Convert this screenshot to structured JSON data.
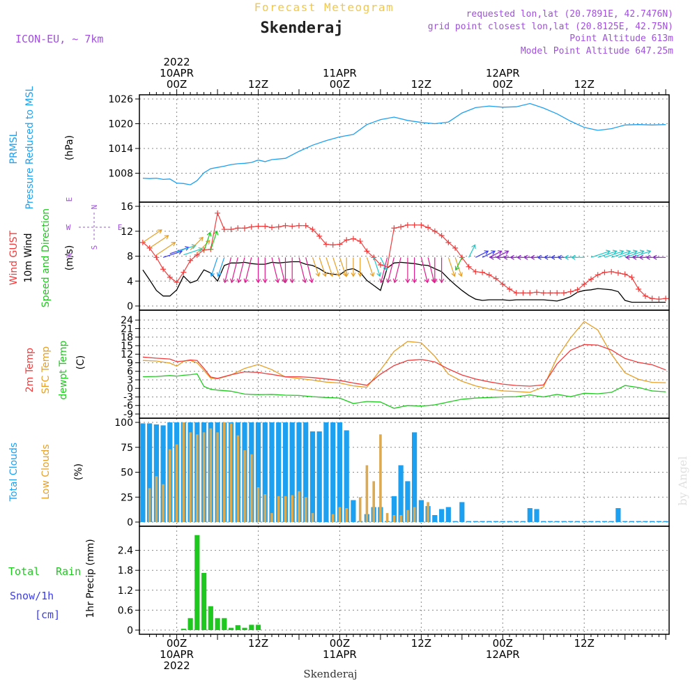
{
  "header": {
    "product": "Forecast Meteogram",
    "location": "Skenderaj",
    "model": "ICON-EU, ~ 7km",
    "requested": "requested lon,lat (20.7891E, 42.7476N)",
    "grid_point": "grid point closest lon,lat (20.8125E, 42.75N)",
    "point_altitude": "Point Altitude 613m",
    "model_altitude": "Model Point Altitude 647.25m",
    "watermark": "by Angel",
    "footer_location": "Skenderaj"
  },
  "time_axis": {
    "top_labels": [
      {
        "hour": 0,
        "lines": [
          "2022",
          "10APR",
          "00Z"
        ]
      },
      {
        "hour": 12,
        "lines": [
          "12Z"
        ]
      },
      {
        "hour": 24,
        "lines": [
          "11APR",
          "00Z"
        ]
      },
      {
        "hour": 36,
        "lines": [
          "12Z"
        ]
      },
      {
        "hour": 48,
        "lines": [
          "12APR",
          "00Z"
        ]
      },
      {
        "hour": 60,
        "lines": [
          "12Z"
        ]
      }
    ],
    "bottom_labels": [
      {
        "hour": 0,
        "lines": [
          "00Z",
          "10APR",
          "2022"
        ]
      },
      {
        "hour": 12,
        "lines": [
          "12Z"
        ]
      },
      {
        "hour": 24,
        "lines": [
          "00Z",
          "11APR"
        ]
      },
      {
        "hour": 36,
        "lines": [
          "12Z"
        ]
      },
      {
        "hour": 48,
        "lines": [
          "00Z",
          "12APR"
        ]
      },
      {
        "hour": 60,
        "lines": [
          "12Z"
        ]
      }
    ],
    "hour_min": -5.5,
    "hour_max": 72.5
  },
  "panel_labels": {
    "pressure": [
      "PRMSL",
      "Pressure Reduced to MSL",
      "(hPa)"
    ],
    "wind": [
      "Wind GUST",
      "10m Wind",
      "Speed and Direction",
      "(m/s)"
    ],
    "wind_compass": {
      "n": "N",
      "s": "S",
      "w": "W",
      "e": "E"
    },
    "temp": [
      "2m Temp",
      "SFC Temp",
      "dewpt Temp",
      "(C)"
    ],
    "clouds": [
      "Total Clouds",
      "Low Clouds",
      "(%)"
    ],
    "precip": [
      "Total",
      "Rain",
      "Snow/1h",
      "[cm]",
      "1hr Precip (mm)"
    ]
  },
  "colors": {
    "pressure": "#1ea0f0",
    "gust": "#f03c3c",
    "wind": "#000000",
    "temp2m": "#f03c3c",
    "sfc": "#e6a028",
    "dewpt": "#1ec81e",
    "total_cloud": "#1ea0f0",
    "low_cloud": "#dcaa50",
    "rain": "#1ec81e",
    "snow": "#3c3cf0",
    "title": "#f0c850",
    "info": "#a050dc"
  },
  "chart_data": [
    {
      "type": "line",
      "name": "pressure",
      "ylabel": "(hPa)",
      "ylim": [
        1002,
        1026
      ],
      "yticks": [
        1008,
        1014,
        1020,
        1026
      ],
      "x": [
        -5,
        -4,
        -3,
        -2,
        -1,
        0,
        1,
        2,
        3,
        4,
        5,
        6,
        7,
        8,
        9,
        10,
        11,
        12,
        13,
        14,
        16,
        18,
        20,
        22,
        24,
        26,
        28,
        30,
        32,
        34,
        36,
        38,
        40,
        42,
        44,
        46,
        48,
        50,
        52,
        54,
        56,
        58,
        60,
        62,
        64,
        66,
        68,
        70,
        72
      ],
      "y": [
        1006.8,
        1006.7,
        1006.8,
        1006.5,
        1006.6,
        1005.6,
        1005.5,
        1005.2,
        1006.2,
        1008.1,
        1009.1,
        1009.4,
        1009.7,
        1010.1,
        1010.3,
        1010.4,
        1010.6,
        1011.2,
        1010.8,
        1011.3,
        1011.6,
        1013.3,
        1014.8,
        1015.9,
        1016.8,
        1017.4,
        1019.8,
        1021.0,
        1021.6,
        1020.8,
        1020.3,
        1020.0,
        1020.4,
        1022.6,
        1023.9,
        1024.3,
        1024.0,
        1024.1,
        1024.9,
        1023.8,
        1022.4,
        1020.6,
        1019.1,
        1018.4,
        1018.8,
        1019.7,
        1019.8,
        1019.7,
        1019.8
      ]
    },
    {
      "type": "line",
      "name": "wind",
      "ylabel": "(m/s)",
      "ylim": [
        0,
        16
      ],
      "yticks": [
        0,
        4,
        8,
        12,
        16
      ],
      "x": [
        -5,
        -4,
        -3,
        -2,
        -1,
        0,
        1,
        2,
        3,
        4,
        5,
        6,
        7,
        8,
        9,
        10,
        11,
        12,
        13,
        14,
        15,
        16,
        17,
        18,
        19,
        20,
        21,
        22,
        23,
        24,
        25,
        26,
        27,
        28,
        29,
        30,
        31,
        32,
        33,
        34,
        35,
        36,
        37,
        38,
        39,
        40,
        41,
        42,
        43,
        44,
        45,
        46,
        47,
        48,
        49,
        50,
        51,
        52,
        53,
        54,
        55,
        56,
        57,
        58,
        59,
        60,
        61,
        62,
        63,
        64,
        65,
        66,
        67,
        68,
        69,
        70,
        71,
        72
      ],
      "gust": [
        10.2,
        9.3,
        7.8,
        5.9,
        4.6,
        3.8,
        5.4,
        7.3,
        8.2,
        9.0,
        9.1,
        14.9,
        12.3,
        12.3,
        12.5,
        12.5,
        12.7,
        12.8,
        12.8,
        12.6,
        12.7,
        12.9,
        12.8,
        12.9,
        12.9,
        12.3,
        11.2,
        9.9,
        9.8,
        9.9,
        10.6,
        10.8,
        10.4,
        8.8,
        7.8,
        6.6,
        6.3,
        12.5,
        12.7,
        13.0,
        13.0,
        13.0,
        12.6,
        12.0,
        11.3,
        10.2,
        9.3,
        7.8,
        6.3,
        5.5,
        5.4,
        5.0,
        4.4,
        3.5,
        2.7,
        2.1,
        2.1,
        2.1,
        2.2,
        2.1,
        2.1,
        2.1,
        2.1,
        2.3,
        2.6,
        3.5,
        4.3,
        5.0,
        5.4,
        5.5,
        5.3,
        5.1,
        4.6,
        2.7,
        1.6,
        1.2,
        1.1,
        1.2
      ],
      "speed": [
        5.8,
        4.2,
        2.5,
        1.6,
        1.6,
        2.6,
        4.8,
        3.7,
        4.1,
        5.8,
        5.3,
        4.0,
        6.5,
        6.9,
        6.9,
        7.0,
        6.8,
        6.7,
        6.7,
        7.0,
        6.9,
        7.0,
        7.1,
        7.1,
        6.7,
        6.5,
        6.0,
        5.3,
        5.1,
        5.0,
        5.8,
        6.0,
        5.4,
        4.1,
        3.3,
        2.5,
        6.1,
        6.9,
        7.0,
        6.9,
        6.8,
        6.6,
        6.5,
        6.0,
        5.5,
        4.4,
        3.4,
        2.5,
        1.7,
        1.1,
        0.9,
        1.0,
        1.0,
        1.0,
        0.9,
        1.0,
        1.0,
        1.0,
        1.0,
        1.0,
        0.9,
        0.8,
        1.1,
        1.5,
        2.2,
        2.5,
        2.6,
        2.8,
        2.7,
        2.6,
        2.3,
        0.9,
        0.6,
        0.6,
        0.6,
        0.6,
        0.6,
        0.6
      ],
      "arrows": {
        "level": [
          10.2,
          9.3,
          8.2,
          7.8,
          8.4,
          8.7,
          8.2,
          9.0,
          8.5,
          8.8,
          9.0,
          7.8,
          7.8,
          7.8,
          7.8,
          7.8,
          7.8,
          7.8,
          7.8,
          7.8,
          7.8,
          7.8,
          7.8,
          7.8,
          7.8,
          7.8,
          7.8,
          7.8,
          7.8,
          7.8,
          7.8,
          7.8,
          7.8,
          7.8,
          7.8,
          7.8,
          7.8,
          7.8,
          7.8,
          7.8,
          7.8,
          7.8,
          7.8,
          7.8,
          7.8,
          7.8,
          7.8,
          7.8,
          7.8,
          7.8,
          7.8,
          7.8,
          7.8,
          7.8,
          7.8,
          7.8,
          7.8,
          7.8,
          7.8,
          7.8,
          7.8,
          7.8,
          7.8,
          7.8,
          7.8,
          7.8,
          7.8,
          7.8,
          7.8,
          7.8,
          7.8,
          7.8,
          7.8,
          7.8,
          7.8,
          7.8,
          7.8,
          7.8
        ],
        "dx": [
          3,
          3,
          3,
          3,
          3,
          3,
          3,
          2,
          2,
          1,
          1,
          -1,
          -1,
          -1,
          -1,
          -1,
          -1,
          0,
          0,
          1,
          1,
          0,
          0,
          1,
          1,
          1,
          1,
          1,
          1,
          1,
          0,
          0,
          0,
          1,
          1,
          1,
          -1,
          -1,
          -1,
          0,
          0,
          1,
          1,
          0,
          0,
          1,
          1,
          -1,
          1,
          2,
          2,
          2,
          2,
          -2,
          -2,
          -2,
          -2,
          -2,
          -2,
          -2,
          -2,
          -2,
          -2,
          -2,
          -2,
          -2,
          3,
          3,
          3,
          3,
          3,
          3,
          3,
          -2,
          -2,
          -2,
          -2,
          -2
        ],
        "dy": [
          -2,
          -2,
          -2,
          -1,
          -1,
          -1,
          -1,
          -2,
          -2,
          -3,
          -3,
          3,
          3,
          4,
          4,
          4,
          4,
          4,
          4,
          4,
          4,
          4,
          4,
          4,
          4,
          3,
          3,
          3,
          3,
          3,
          3,
          3,
          3,
          3,
          3,
          2,
          4,
          4,
          4,
          4,
          4,
          4,
          4,
          4,
          4,
          3,
          3,
          2,
          -2,
          -1,
          -1,
          -1,
          -1,
          0,
          0,
          0,
          0,
          0,
          0,
          0,
          0,
          0,
          0,
          0,
          0,
          0,
          -1,
          -1,
          -1,
          -1,
          -1,
          -1,
          -1,
          0,
          0,
          0,
          0,
          0
        ],
        "colors": [
          "#e6a028",
          "#e6a028",
          "#e6a028",
          "#3c3cf0",
          "#3c3cf0",
          "#1ec8c8",
          "#1ec8c8",
          "#e6a028",
          "#e6a028",
          "#1ec81e",
          "#1ec81e",
          "#1ea0f0",
          "#1ea0f0",
          "#dc1e8c",
          "#dc1e8c",
          "#dc1e8c",
          "#dc1e8c",
          "#dc1e8c",
          "#dc1e8c",
          "#dc1e8c",
          "#dc1e8c",
          "#dc1e8c",
          "#dc1e8c",
          "#dc1e8c",
          "#dc1e8c",
          "#e6a028",
          "#e6a028",
          "#e6a028",
          "#e6a028",
          "#e6a028",
          "#e6a028",
          "#e6a028",
          "#e6a028",
          "#e6a028",
          "#1ec8c8",
          "#1ec8c8",
          "#dc1e8c",
          "#dc1e8c",
          "#dc1e8c",
          "#dc1e8c",
          "#dc1e8c",
          "#dc1e8c",
          "#dc1e8c",
          "#dc1e8c",
          "#dc1e8c",
          "#e6a028",
          "#e6a028",
          "#1ec81e",
          "#1ec8c8",
          "#3c3cf0",
          "#3c3cf0",
          "#8c28c8",
          "#8c28c8",
          "#8c28c8",
          "#8c28c8",
          "#8c28c8",
          "#8c28c8",
          "#8c28c8",
          "#8c28c8",
          "#8c28c8",
          "#3c3cf0",
          "#3c3cf0",
          "#3c3cf0",
          "#3c3cf0",
          "#1ec8c8",
          "#1ec8c8",
          "#1ec8c8",
          "#1ec8c8",
          "#1ec8c8",
          "#1ec8c8",
          "#1ec8c8",
          "#1ec8c8",
          "#1ec8c8",
          "#8c28c8",
          "#8c28c8",
          "#8c28c8",
          "#8c28c8",
          "#8c28c8"
        ]
      }
    },
    {
      "type": "line",
      "name": "temperature",
      "ylabel": "(C)",
      "ylim": [
        -9,
        26
      ],
      "yticks": [
        -9,
        -6,
        -3,
        0,
        3,
        6,
        9,
        12,
        15,
        18,
        21,
        24
      ],
      "x": [
        -5,
        -3,
        -1,
        0,
        1,
        2,
        3,
        4,
        5,
        6,
        8,
        10,
        12,
        14,
        16,
        18,
        20,
        22,
        24,
        26,
        28,
        30,
        32,
        34,
        36,
        38,
        40,
        42,
        44,
        46,
        48,
        50,
        52,
        54,
        56,
        58,
        60,
        62,
        64,
        66,
        68,
        70,
        72
      ],
      "t2m": [
        11.0,
        10.6,
        10.3,
        9.4,
        9.6,
        10.0,
        9.8,
        7.0,
        4.0,
        3.5,
        4.8,
        5.8,
        5.6,
        4.9,
        4.1,
        4.1,
        3.8,
        3.3,
        2.8,
        1.9,
        1.1,
        5.0,
        8.0,
        9.8,
        10.2,
        9.3,
        6.8,
        4.7,
        3.3,
        2.3,
        1.5,
        1.0,
        0.8,
        1.2,
        8.6,
        13.4,
        15.4,
        15.2,
        13.5,
        10.5,
        9.1,
        8.3,
        6.5
      ],
      "sfc": [
        9.8,
        9.6,
        8.9,
        7.8,
        9.5,
        9.8,
        9.0,
        6.3,
        3.6,
        3.4,
        4.7,
        7.0,
        8.4,
        6.6,
        4.0,
        3.5,
        2.9,
        2.2,
        1.9,
        0.9,
        0.4,
        6.5,
        13.0,
        16.5,
        16.0,
        11.3,
        5.0,
        2.5,
        0.9,
        -0.2,
        -0.9,
        -1.1,
        -1.4,
        0.5,
        10.8,
        17.8,
        23.5,
        20.5,
        12.0,
        5.5,
        3.2,
        2.1,
        2.0
      ],
      "dewpt": [
        4.1,
        4.2,
        4.5,
        4.3,
        4.6,
        4.8,
        5.1,
        0.7,
        -0.3,
        -0.6,
        -1.0,
        -2.0,
        -2.2,
        -2.1,
        -2.4,
        -2.5,
        -2.9,
        -3.2,
        -3.4,
        -5.3,
        -4.6,
        -4.8,
        -7.0,
        -6.0,
        -6.2,
        -5.8,
        -4.8,
        -3.8,
        -3.4,
        -3.2,
        -3.0,
        -2.9,
        -2.3,
        -3.0,
        -2.1,
        -2.9,
        -1.7,
        -1.9,
        -1.4,
        1.0,
        0.3,
        -0.9,
        -1.2
      ]
    },
    {
      "type": "bar",
      "name": "clouds",
      "ylabel": "(%)",
      "ylim": [
        0,
        100
      ],
      "yticks": [
        0,
        25,
        50,
        75,
        100
      ],
      "x": [
        -5,
        -4,
        -3,
        -2,
        -1,
        0,
        1,
        2,
        3,
        4,
        5,
        6,
        7,
        8,
        9,
        10,
        11,
        12,
        13,
        14,
        15,
        16,
        17,
        18,
        19,
        20,
        21,
        22,
        23,
        24,
        25,
        26,
        27,
        28,
        29,
        30,
        31,
        32,
        33,
        34,
        35,
        36,
        37,
        38,
        39,
        40,
        41,
        42,
        43,
        44,
        45,
        46,
        47,
        48,
        49,
        50,
        51,
        52,
        53,
        54,
        55,
        56,
        57,
        58,
        59,
        60,
        61,
        62,
        63,
        64,
        65,
        66,
        67,
        68,
        69,
        70,
        71,
        72
      ],
      "total": [
        99,
        99,
        98,
        97,
        100,
        100,
        100,
        100,
        100,
        100,
        100,
        100,
        100,
        100,
        100,
        100,
        100,
        100,
        100,
        100,
        100,
        100,
        100,
        100,
        100,
        91,
        91,
        100,
        100,
        100,
        92,
        22,
        1,
        8,
        15,
        15,
        1,
        26,
        57,
        41,
        90,
        22,
        16,
        7,
        13,
        15,
        1,
        20,
        1,
        1,
        1,
        1,
        1,
        1,
        1,
        1,
        1,
        14,
        13,
        1,
        1,
        1,
        1,
        1,
        1,
        1,
        1,
        1,
        1,
        1,
        14,
        1,
        1,
        1,
        1,
        1,
        1,
        1
      ],
      "low": [
        0,
        34,
        46,
        38,
        73,
        78,
        100,
        90,
        88,
        90,
        94,
        90,
        100,
        99,
        87,
        72,
        68,
        35,
        28,
        9,
        26,
        26,
        27,
        31,
        25,
        9,
        0,
        0,
        8,
        15,
        14,
        0,
        25,
        57,
        41,
        88,
        9,
        7,
        7,
        12,
        15,
        0,
        20,
        0,
        0,
        0,
        0,
        0,
        0,
        0,
        0,
        0,
        0,
        0,
        0,
        0,
        0,
        0,
        0,
        0,
        0,
        0,
        0,
        0,
        0,
        0,
        0,
        0,
        0,
        0,
        0,
        0,
        0,
        0,
        0,
        0,
        0,
        0
      ]
    },
    {
      "type": "bar",
      "name": "precipitation",
      "ylabel": "1hr Precip (mm)",
      "ylim": [
        0,
        3.0
      ],
      "yticks": [
        0,
        0.6,
        1.2,
        1.8,
        2.4
      ],
      "ytick_labels": [
        "0",
        "0.6",
        "1.2",
        "1.8",
        "2.4"
      ],
      "x": [
        1,
        2,
        3,
        4,
        5,
        6,
        7,
        8,
        9,
        10,
        11,
        12
      ],
      "rain": [
        0.04,
        0.36,
        2.86,
        1.72,
        0.72,
        0.36,
        0.36,
        0.07,
        0.15,
        0.07,
        0.16,
        0.16
      ],
      "snow": [
        0,
        0,
        0,
        0,
        0,
        0,
        0,
        0,
        0,
        0,
        0,
        0
      ]
    }
  ]
}
